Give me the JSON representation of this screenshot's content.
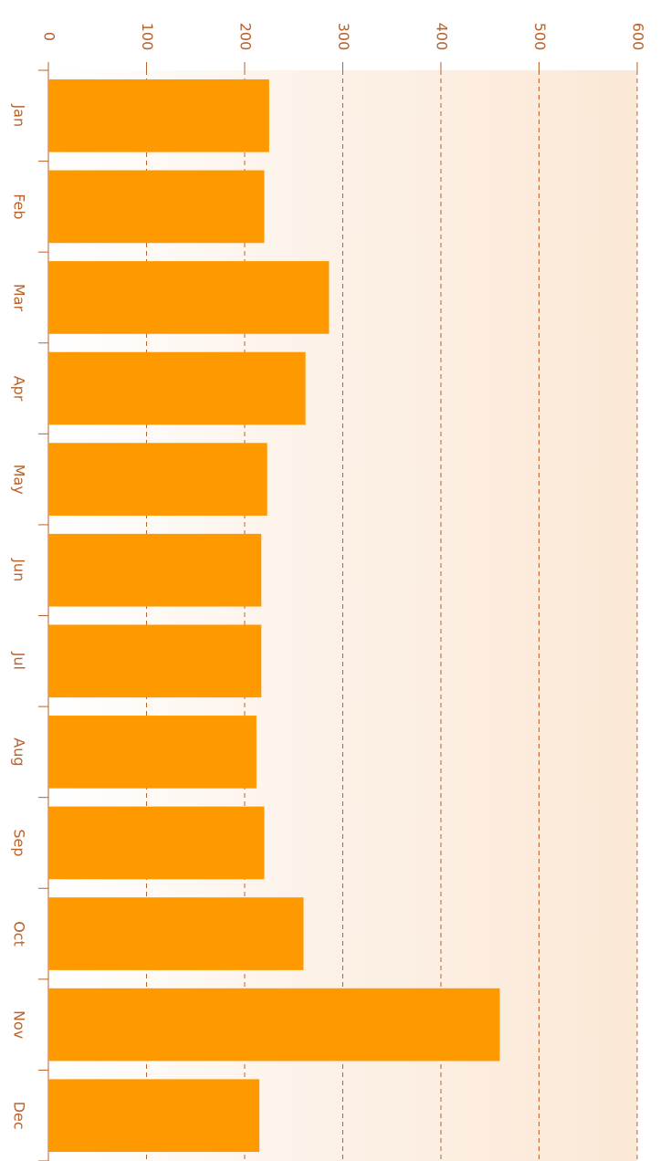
{
  "chart_data": {
    "type": "bar",
    "orientation": "horizontal",
    "categories": [
      "Jan",
      "Feb",
      "Mar",
      "Apr",
      "May",
      "Jun",
      "Jul",
      "Aug",
      "Sep",
      "Oct",
      "Nov",
      "Dec"
    ],
    "values": [
      225,
      220,
      286,
      262,
      223,
      217,
      217,
      212,
      220,
      260,
      460,
      215
    ],
    "color": "#ff9900",
    "xlim": [
      0,
      600
    ],
    "xticks": [
      0,
      100,
      200,
      300,
      400,
      500,
      600
    ],
    "grid": true
  }
}
